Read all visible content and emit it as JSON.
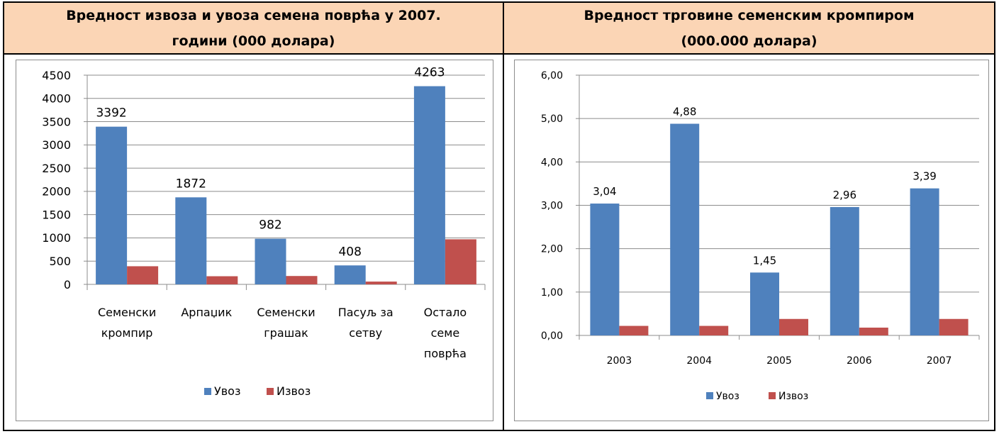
{
  "header": {
    "left_title_line1": "Вредност извоза и увоза семена поврћа у 2007.",
    "left_title_line2": "години (000 долара)",
    "right_title_line1": "Вредност трговине семенским кромпиром",
    "right_title_line2": "(000.000 долара)"
  },
  "colors": {
    "import": "#4f81bd",
    "export": "#c0504d",
    "header_bg": "#fbd5b5"
  },
  "chart_data": [
    {
      "type": "bar",
      "categories": [
        [
          "Семенски",
          "кромпир"
        ],
        [
          "Арпаџик"
        ],
        [
          "Семенски",
          "грашак"
        ],
        [
          "Пасуљ за",
          "сетву"
        ],
        [
          "Остало",
          "семе",
          "поврћа"
        ]
      ],
      "series": [
        {
          "name": "Увоз",
          "values": [
            3392,
            1872,
            982,
            408,
            4263
          ],
          "data_labels": [
            "3392",
            "1872",
            "982",
            "408",
            "4263"
          ]
        },
        {
          "name": "Извоз",
          "values": [
            390,
            175,
            180,
            60,
            970
          ]
        }
      ],
      "ylim": [
        0,
        4500
      ],
      "yticks": [
        "0",
        "500",
        "1000",
        "1500",
        "2000",
        "2500",
        "3000",
        "3500",
        "4000",
        "4500"
      ],
      "grid": true,
      "legend": "bottom"
    },
    {
      "type": "bar",
      "categories": [
        [
          "2003"
        ],
        [
          "2004"
        ],
        [
          "2005"
        ],
        [
          "2006"
        ],
        [
          "2007"
        ]
      ],
      "series": [
        {
          "name": "Увоз",
          "values": [
            3.04,
            4.88,
            1.45,
            2.96,
            3.39
          ],
          "data_labels": [
            "3,04",
            "4,88",
            "1,45",
            "2,96",
            "3,39"
          ]
        },
        {
          "name": "Извоз",
          "values": [
            0.22,
            0.22,
            0.38,
            0.18,
            0.38
          ]
        }
      ],
      "ylim": [
        0,
        6
      ],
      "yticks": [
        "0,00",
        "1,00",
        "2,00",
        "3,00",
        "4,00",
        "5,00",
        "6,00"
      ],
      "grid": true,
      "legend": "bottom"
    }
  ]
}
